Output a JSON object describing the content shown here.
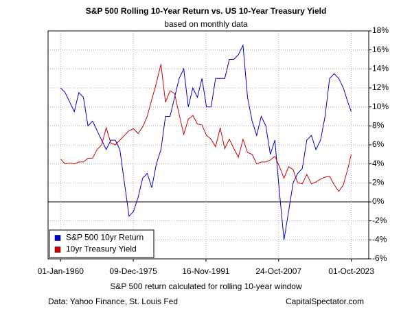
{
  "chart_data": {
    "type": "line",
    "title": "S&P 500 Rolling 10-Year Return vs. US 10-Year Treasury Yield",
    "subtitle": "based on monthly data",
    "x_label": "S&P 500 return calculated for rolling 10-year window",
    "source": "Data: Yahoo Finance, St. Louis Fed",
    "credit": "CapitalSpectator.com",
    "x": [
      "1960-01-01",
      "1961-01-01",
      "1962-01-01",
      "1963-01-01",
      "1964-01-01",
      "1965-01-01",
      "1966-01-01",
      "1967-01-01",
      "1968-01-01",
      "1969-01-01",
      "1970-01-01",
      "1971-01-01",
      "1972-01-01",
      "1973-01-01",
      "1974-01-01",
      "1975-01-01",
      "1976-01-01",
      "1977-01-01",
      "1978-01-01",
      "1979-01-01",
      "1980-01-01",
      "1981-01-01",
      "1982-01-01",
      "1983-01-01",
      "1984-01-01",
      "1985-01-01",
      "1986-01-01",
      "1987-01-01",
      "1988-01-01",
      "1989-01-01",
      "1990-01-01",
      "1991-01-01",
      "1992-01-01",
      "1993-01-01",
      "1994-01-01",
      "1995-01-01",
      "1996-01-01",
      "1997-01-01",
      "1998-01-01",
      "1999-01-01",
      "2000-01-01",
      "2001-01-01",
      "2002-01-01",
      "2003-01-01",
      "2004-01-01",
      "2005-01-01",
      "2006-01-01",
      "2007-01-01",
      "2008-01-01",
      "2009-01-01",
      "2010-01-01",
      "2011-01-01",
      "2012-01-01",
      "2013-01-01",
      "2014-01-01",
      "2015-01-01",
      "2016-01-01",
      "2017-01-01",
      "2018-01-01",
      "2019-01-01",
      "2020-01-01",
      "2021-01-01",
      "2022-01-01",
      "2023-01-01",
      "2023-10-01"
    ],
    "series": [
      {
        "name": "S&P 500 10yr Return",
        "color": "#0000cc",
        "values": [
          12,
          11.5,
          10.5,
          9.5,
          11.5,
          11,
          8,
          8.5,
          7.5,
          6.5,
          5.5,
          6.5,
          6.5,
          5.5,
          2,
          -1.5,
          -1,
          0.5,
          2.5,
          3,
          1.5,
          4,
          5.5,
          9,
          9,
          11,
          13,
          14,
          10,
          12,
          11,
          13,
          10,
          10,
          13,
          13,
          13,
          15,
          15,
          15.5,
          16.5,
          11,
          8.5,
          7,
          9,
          8,
          5,
          6.5,
          1,
          -4,
          -1,
          2,
          3,
          3.5,
          6.5,
          7,
          5.5,
          6.5,
          9,
          13,
          13.5,
          13,
          12,
          10.5,
          9.5
        ]
      },
      {
        "name": "10yr Treasury Yield",
        "color": "#cc0000",
        "values": [
          4.5,
          4,
          4.1,
          4,
          4.2,
          4.2,
          4.6,
          4.6,
          5.5,
          6,
          7.8,
          6.2,
          6,
          6.5,
          7,
          7.5,
          7.7,
          7.2,
          7.9,
          9,
          10.8,
          12.5,
          14.5,
          10.5,
          11.7,
          11.4,
          9.2,
          7.1,
          8.7,
          9.1,
          8.2,
          8.1,
          7,
          6.6,
          5.8,
          7.8,
          5.6,
          6.6,
          5.6,
          4.7,
          6.6,
          5.2,
          5,
          4,
          4.2,
          4.2,
          4.4,
          4.8,
          3.7,
          2.5,
          3.7,
          3.4,
          2,
          1.9,
          2.9,
          1.9,
          2.1,
          2.4,
          2.6,
          2.7,
          1.8,
          1.1,
          1.8,
          3.5,
          5
        ]
      }
    ],
    "xlim": [
      "1957-04-01",
      "2027-08-01"
    ],
    "xticks": [
      {
        "value": "1960-01-01",
        "label": "01-Jan-1960"
      },
      {
        "value": "1975-12-09",
        "label": "09-Dec-1975"
      },
      {
        "value": "1991-11-16",
        "label": "16-Nov-1991"
      },
      {
        "value": "2007-10-24",
        "label": "24-Oct-2007"
      },
      {
        "value": "2023-10-01",
        "label": "01-Oct-2023"
      }
    ],
    "ylim": [
      -6,
      18
    ],
    "yticks": [
      {
        "value": -6,
        "label": "-6%"
      },
      {
        "value": -4,
        "label": "-4%"
      },
      {
        "value": -2,
        "label": "-2%"
      },
      {
        "value": 0,
        "label": "0%"
      },
      {
        "value": 2,
        "label": "2%"
      },
      {
        "value": 4,
        "label": "4%"
      },
      {
        "value": 6,
        "label": "6%"
      },
      {
        "value": 8,
        "label": "8%"
      },
      {
        "value": 10,
        "label": "10%"
      },
      {
        "value": 12,
        "label": "12%"
      },
      {
        "value": 14,
        "label": "14%"
      },
      {
        "value": 16,
        "label": "16%"
      },
      {
        "value": 18,
        "label": "18%"
      }
    ],
    "grid": true,
    "legend": "lower left"
  }
}
